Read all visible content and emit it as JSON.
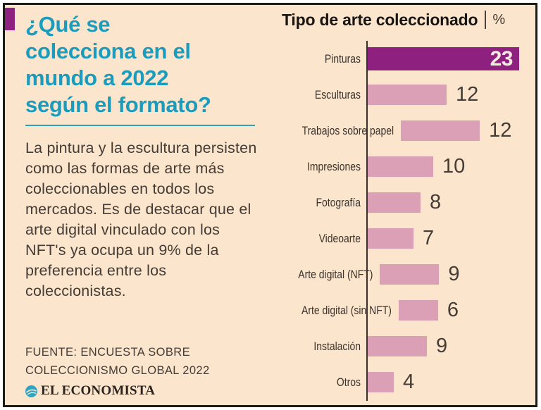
{
  "page": {
    "background": "#fce5cd",
    "border_color": "#1e1a16",
    "accent_square_color": "#8e2080"
  },
  "intro": {
    "title_lines": [
      "¿Qué se",
      "colecciona en el",
      "mundo a 2022",
      "según el formato?"
    ],
    "title_color": "#1b9cbd",
    "body": "La pintura y la escultura persisten como las formas de arte más coleccionables en todos los mercados. Es de destacar que el arte digital vinculado con los NFT's ya ocupa un 9% de la preferencia entre los coleccionistas."
  },
  "source": {
    "lines": [
      "FUENTE: ENCUESTA SOBRE",
      "COLECCIONISMO GLOBAL 2022"
    ],
    "brand": "EL ECONOMISTA",
    "brand_icon_color": "#2fa3c2"
  },
  "chart_data": {
    "type": "bar",
    "orientation": "horizontal",
    "title": "Tipo de arte coleccionado",
    "unit_label": "%",
    "categories": [
      "Pinturas",
      "Esculturas",
      "Trabajos sobre papel",
      "Impresiones",
      "Fotografía",
      "Videoarte",
      "Arte digital (NFT)",
      "Arte digital (sin NFT)",
      "Instalación",
      "Otros"
    ],
    "values": [
      23,
      12,
      12,
      10,
      8,
      7,
      9,
      6,
      9,
      4
    ],
    "xlim": [
      0,
      23
    ],
    "grid": false,
    "legend": false,
    "highlight_index": 0,
    "bar_color": "#db9fb6",
    "highlight_color": "#8e2080",
    "value_label_color": "#453c35",
    "highlight_value_color": "#f6e9df"
  }
}
